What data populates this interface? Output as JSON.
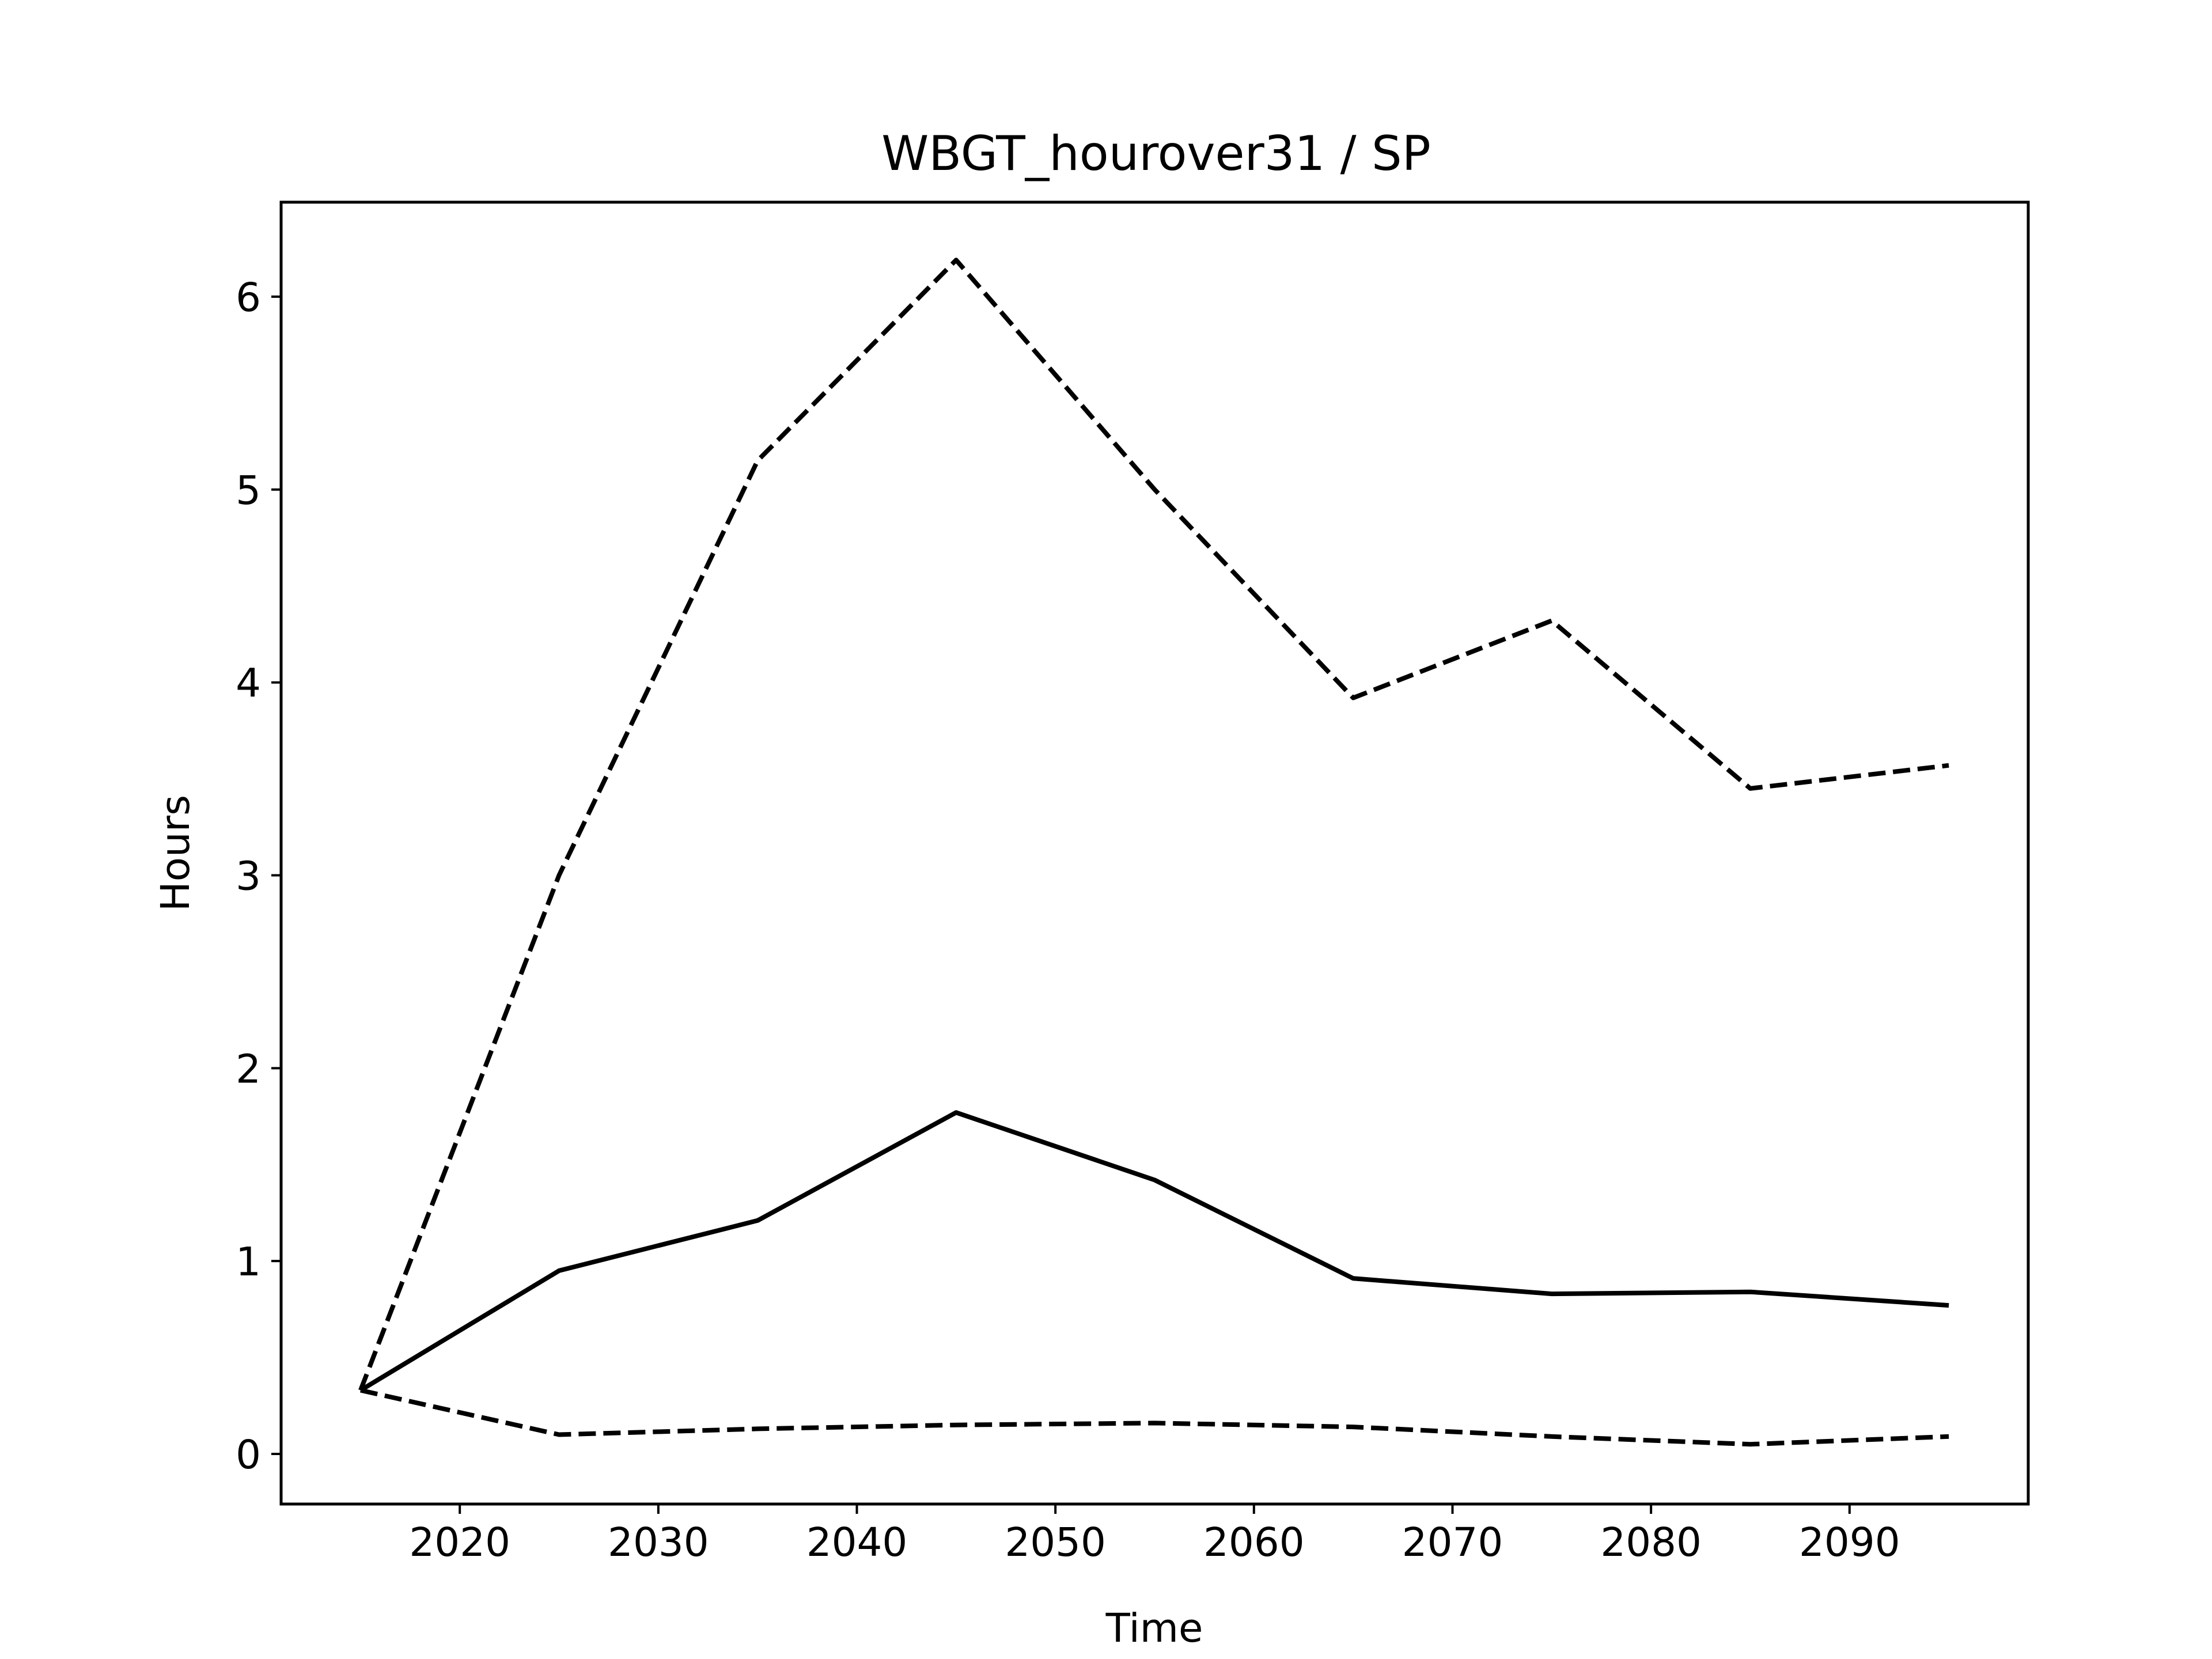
{
  "chart_data": {
    "type": "line",
    "title": "WBGT_hourover31 / SP",
    "xlabel": "Time",
    "ylabel": "Hours",
    "xlim": [
      2011,
      2099
    ],
    "ylim": [
      -0.26,
      6.49
    ],
    "xticks": [
      2020,
      2030,
      2040,
      2050,
      2060,
      2070,
      2080,
      2090
    ],
    "yticks": [
      0,
      1,
      2,
      3,
      4,
      5,
      6
    ],
    "grid": false,
    "legend": "none",
    "x": [
      2015,
      2025,
      2035,
      2045,
      2055,
      2065,
      2075,
      2085,
      2095
    ],
    "series": [
      {
        "style": "dashed",
        "color": "#000000",
        "values": [
          0.33,
          3.0,
          5.15,
          6.19,
          5.0,
          3.92,
          4.32,
          3.45,
          3.57
        ]
      },
      {
        "style": "solid",
        "color": "#000000",
        "values": [
          0.33,
          0.95,
          1.21,
          1.77,
          1.42,
          0.91,
          0.83,
          0.84,
          0.77
        ]
      },
      {
        "style": "dashed",
        "color": "#000000",
        "values": [
          0.33,
          0.1,
          0.13,
          0.15,
          0.16,
          0.14,
          0.09,
          0.05,
          0.09
        ]
      }
    ]
  }
}
